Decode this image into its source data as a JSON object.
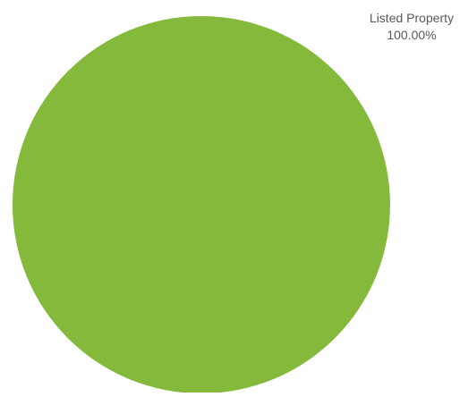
{
  "chart_data": {
    "type": "pie",
    "slices": [
      {
        "label": "Listed Property",
        "value": 100.0,
        "value_text": "100.00%",
        "color": "#84b93b"
      }
    ],
    "legend": "none"
  }
}
